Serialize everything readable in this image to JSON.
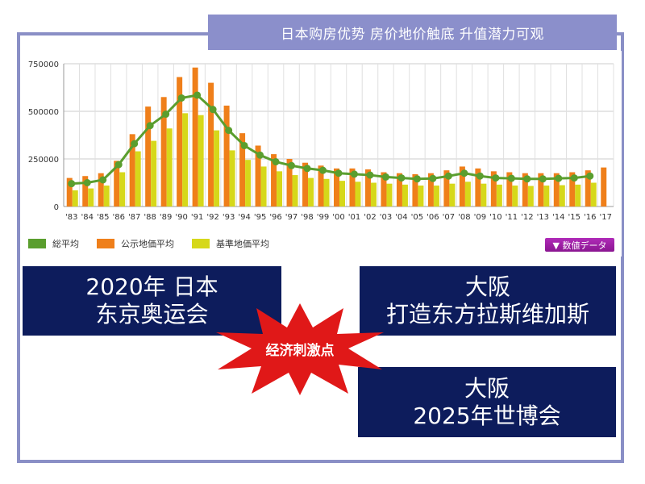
{
  "banner": {
    "text": "日本购房优势  房价地价触底 升值潜力可观"
  },
  "chart_data": {
    "type": "bar",
    "categories": [
      "'83",
      "'84",
      "'85",
      "'86",
      "'87",
      "'88",
      "'89",
      "'90",
      "'91",
      "'92",
      "'93",
      "'94",
      "'95",
      "'96",
      "'97",
      "'98",
      "'99",
      "'00",
      "'01",
      "'02",
      "'03",
      "'04",
      "'05",
      "'06",
      "'07",
      "'08",
      "'09",
      "'10",
      "'11",
      "'12",
      "'13",
      "'14",
      "'15",
      "'16",
      "'17"
    ],
    "series": [
      {
        "name": "公示地価平均",
        "kind": "bar",
        "color": "#ef7f1a",
        "values": [
          150000,
          160000,
          175000,
          240000,
          380000,
          525000,
          575000,
          680000,
          730000,
          650000,
          530000,
          385000,
          320000,
          275000,
          250000,
          230000,
          215000,
          200000,
          200000,
          195000,
          180000,
          175000,
          170000,
          175000,
          190000,
          210000,
          200000,
          185000,
          180000,
          175000,
          175000,
          175000,
          180000,
          190000,
          205000
        ]
      },
      {
        "name": "基準地価平均",
        "kind": "bar",
        "color": "#d6d81a",
        "values": [
          85000,
          95000,
          110000,
          180000,
          290000,
          345000,
          410000,
          490000,
          480000,
          400000,
          295000,
          245000,
          210000,
          185000,
          165000,
          150000,
          145000,
          135000,
          130000,
          125000,
          120000,
          115000,
          110000,
          110000,
          120000,
          130000,
          120000,
          115000,
          110000,
          108000,
          110000,
          112000,
          115000,
          125000,
          null
        ]
      },
      {
        "name": "総平均",
        "kind": "line",
        "color": "#5a9e2e",
        "values": [
          120000,
          125000,
          140000,
          220000,
          330000,
          425000,
          485000,
          570000,
          585000,
          510000,
          400000,
          320000,
          270000,
          235000,
          215000,
          200000,
          190000,
          175000,
          170000,
          165000,
          155000,
          150000,
          145000,
          147000,
          160000,
          175000,
          160000,
          150000,
          148000,
          145000,
          145000,
          148000,
          150000,
          160000,
          null
        ]
      }
    ],
    "ylim": [
      0,
      750000
    ],
    "yticks": [
      0,
      250000,
      500000,
      750000
    ],
    "ytick_labels": [
      "0",
      "250000",
      "500000",
      "750000"
    ],
    "grid": true,
    "legend_placement": "bottom-left"
  },
  "legend": [
    {
      "label": "総平均",
      "color": "#5a9e2e"
    },
    {
      "label": "公示地価平均",
      "color": "#ef7f1a"
    },
    {
      "label": "基準地価平均",
      "color": "#d6d81a"
    }
  ],
  "data_button": {
    "label": "▼ 数値データ"
  },
  "panels": {
    "olympics": {
      "line1": "2020年 日本",
      "line2": "东京奥运会"
    },
    "osaka_vegas": {
      "line1": "大阪",
      "line2": "打造东方拉斯维加斯"
    },
    "osaka_expo": {
      "line1": "大阪",
      "line2": "2025年世博会"
    }
  },
  "burst": {
    "label": "经济刺激点",
    "color": "#e01818"
  }
}
